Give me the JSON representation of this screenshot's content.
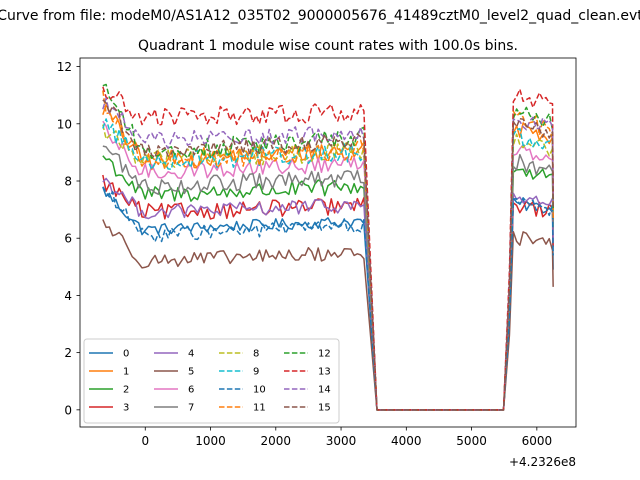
{
  "chart_data": {
    "type": "line",
    "suptitle": "Curve from file: modeM0/AS1A12_035T02_9000005676_41489cztM0_level2_quad_clean.evt",
    "title": "Quadrant 1 module wise count rates with 100.0s bins.",
    "xlabel": "",
    "ylabel": "",
    "x_offset_label": "+4.2326e8",
    "xlim": [
      -1000,
      6600
    ],
    "ylim": [
      -0.6,
      12.3
    ],
    "xticks": [
      0,
      1000,
      2000,
      3000,
      4000,
      5000,
      6000
    ],
    "yticks": [
      0,
      2,
      4,
      6,
      8,
      10,
      12
    ],
    "xtick_labels": [
      "0",
      "1000",
      "2000",
      "3000",
      "4000",
      "5000",
      "6000"
    ],
    "ytick_labels": [
      "0",
      "2",
      "4",
      "6",
      "8",
      "10",
      "12"
    ],
    "grid": false,
    "legend_location": "lower-left",
    "gap_start": 3350,
    "gap_end": 5640,
    "segment1_range": [
      -650,
      3350
    ],
    "segment2_range": [
      5640,
      6250
    ],
    "series": [
      {
        "name": "0",
        "color": "#1f77b4",
        "dashed": false,
        "start": 7.7,
        "level1": 6.3,
        "level2": 7.0,
        "end": 4.9,
        "noise": 0.2
      },
      {
        "name": "1",
        "color": "#ff7f0e",
        "dashed": false,
        "start": 10.6,
        "level1": 8.7,
        "level2": 9.6,
        "end": 6.6,
        "noise": 0.35
      },
      {
        "name": "2",
        "color": "#2ca02c",
        "dashed": false,
        "start": 8.9,
        "level1": 7.5,
        "level2": 8.2,
        "end": 6.3,
        "noise": 0.3
      },
      {
        "name": "3",
        "color": "#d62728",
        "dashed": false,
        "start": 8.0,
        "level1": 6.9,
        "level2": 6.9,
        "end": 5.7,
        "noise": 0.3
      },
      {
        "name": "4",
        "color": "#9467bd",
        "dashed": false,
        "start": 8.1,
        "level1": 6.9,
        "level2": 7.2,
        "end": 5.9,
        "noise": 0.25
      },
      {
        "name": "5",
        "color": "#8c564b",
        "dashed": false,
        "start": 6.6,
        "level1": 5.2,
        "level2": 5.8,
        "end": 4.3,
        "noise": 0.25
      },
      {
        "name": "6",
        "color": "#e377c2",
        "dashed": false,
        "start": 9.8,
        "level1": 8.3,
        "level2": 8.9,
        "end": 6.8,
        "noise": 0.3
      },
      {
        "name": "7",
        "color": "#7f7f7f",
        "dashed": false,
        "start": 9.3,
        "level1": 7.8,
        "level2": 8.4,
        "end": 6.5,
        "noise": 0.3
      },
      {
        "name": "8",
        "color": "#bcbd22",
        "dashed": true,
        "start": 9.8,
        "level1": 8.8,
        "level2": 9.1,
        "end": 6.9,
        "noise": 0.35
      },
      {
        "name": "9",
        "color": "#17becf",
        "dashed": true,
        "start": 10.1,
        "level1": 8.7,
        "level2": 9.3,
        "end": 7.0,
        "noise": 0.35
      },
      {
        "name": "10",
        "color": "#1f77b4",
        "dashed": true,
        "start": 7.8,
        "level1": 6.1,
        "level2": 7.0,
        "end": 5.4,
        "noise": 0.25
      },
      {
        "name": "11",
        "color": "#ff7f0e",
        "dashed": true,
        "start": 10.9,
        "level1": 8.6,
        "level2": 9.8,
        "end": 6.7,
        "noise": 0.35
      },
      {
        "name": "12",
        "color": "#2ca02c",
        "dashed": true,
        "start": 11.5,
        "level1": 9.0,
        "level2": 10.0,
        "end": 7.0,
        "noise": 0.35
      },
      {
        "name": "13",
        "color": "#d62728",
        "dashed": true,
        "start": 11.2,
        "level1": 10.2,
        "level2": 10.8,
        "end": 7.6,
        "noise": 0.35
      },
      {
        "name": "14",
        "color": "#9467bd",
        "dashed": true,
        "start": 10.8,
        "level1": 9.4,
        "level2": 9.9,
        "end": 7.3,
        "noise": 0.3
      },
      {
        "name": "15",
        "color": "#8c564b",
        "dashed": true,
        "start": 10.9,
        "level1": 9.0,
        "level2": 9.6,
        "end": 7.1,
        "noise": 0.3
      }
    ]
  }
}
